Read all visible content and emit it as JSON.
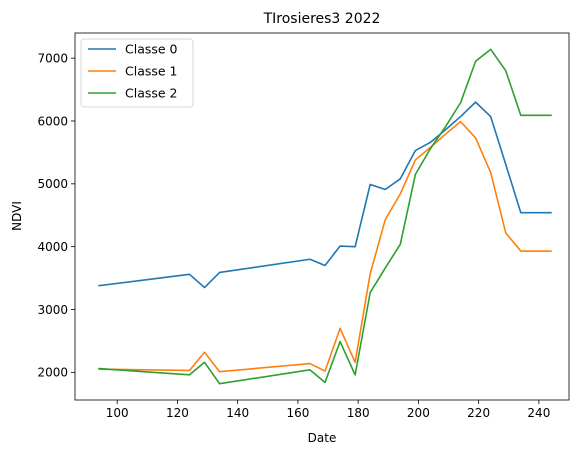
{
  "chart_data": {
    "type": "line",
    "title": "TIrosieres3 2022",
    "xlabel": "Date",
    "ylabel": "NDVI",
    "xlim": [
      86,
      250
    ],
    "ylim": [
      1560,
      7400
    ],
    "xticks": [
      100,
      120,
      140,
      160,
      180,
      200,
      220,
      240
    ],
    "yticks": [
      2000,
      3000,
      4000,
      5000,
      6000,
      7000
    ],
    "grid": false,
    "legend": "top-left",
    "x": [
      94,
      124,
      129,
      134,
      164,
      169,
      174,
      179,
      184,
      189,
      194,
      199,
      204,
      209,
      214,
      219,
      224,
      229,
      234,
      239,
      244
    ],
    "series": [
      {
        "name": "Classe 0",
        "color": "#1f77b4",
        "values": [
          3380,
          3560,
          3350,
          3590,
          3800,
          3700,
          4010,
          4000,
          4990,
          4910,
          5080,
          5530,
          5660,
          5860,
          6070,
          6300,
          6070,
          5310,
          4540,
          4540,
          4540
        ]
      },
      {
        "name": "Classe 1",
        "color": "#ff7f0e",
        "values": [
          2050,
          2030,
          2320,
          2010,
          2140,
          2020,
          2700,
          2160,
          3570,
          4430,
          4840,
          5380,
          5580,
          5790,
          5990,
          5730,
          5180,
          4220,
          3930,
          3930,
          3930
        ]
      },
      {
        "name": "Classe 2",
        "color": "#2ca02c",
        "values": [
          2060,
          1960,
          2160,
          1820,
          2040,
          1840,
          2490,
          1960,
          3270,
          3660,
          4040,
          5150,
          5560,
          5910,
          6290,
          6950,
          7140,
          6800,
          6090,
          6090,
          6090
        ]
      }
    ]
  }
}
